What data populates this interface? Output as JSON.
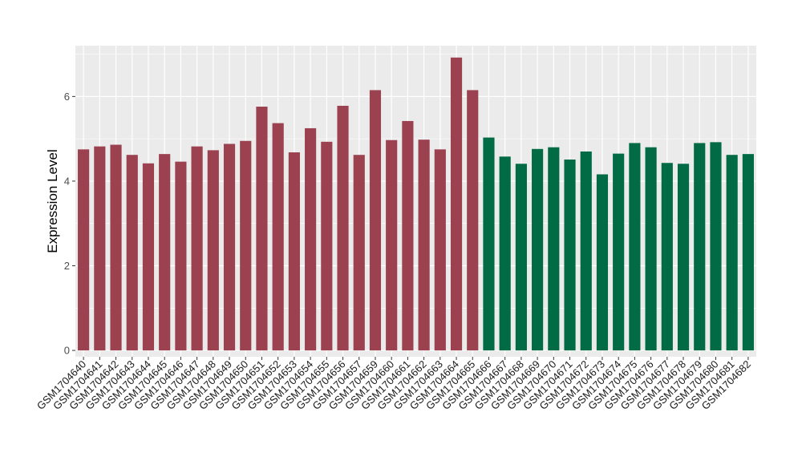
{
  "chart_data": {
    "type": "bar",
    "ylabel": "Expression Level",
    "ylim": [
      -0.15,
      7.2
    ],
    "yticks": [
      0,
      2,
      4,
      6
    ],
    "grid": true,
    "legend": "none",
    "colors": {
      "group_a": "#9b4150",
      "group_b": "#006b45",
      "panel_bg": "#ebebeb",
      "grid": "#ffffff"
    },
    "categories": [
      "GSM1704640",
      "GSM1704641",
      "GSM1704642",
      "GSM1704643",
      "GSM1704644",
      "GSM1704645",
      "GSM1704646",
      "GSM1704647",
      "GSM1704648",
      "GSM1704649",
      "GSM1704650",
      "GSM1704651",
      "GSM1704652",
      "GSM1704653",
      "GSM1704654",
      "GSM1704655",
      "GSM1704656",
      "GSM1704657",
      "GSM1704659",
      "GSM1704660",
      "GSM1704661",
      "GSM1704662",
      "GSM1704663",
      "GSM1704664",
      "GSM1704665",
      "GSM1704666",
      "GSM1704667",
      "GSM1704668",
      "GSM1704669",
      "GSM1704670",
      "GSM1704671",
      "GSM1704672",
      "GSM1704673",
      "GSM1704674",
      "GSM1704675",
      "GSM1704676",
      "GSM1704677",
      "GSM1704678",
      "GSM1704679",
      "GSM1704680",
      "GSM1704681",
      "GSM1704682"
    ],
    "values": [
      4.75,
      4.82,
      4.86,
      4.62,
      4.42,
      4.64,
      4.46,
      4.82,
      4.73,
      4.88,
      4.95,
      5.76,
      5.37,
      4.68,
      5.25,
      4.93,
      5.78,
      4.62,
      6.15,
      4.97,
      5.42,
      4.98,
      4.75,
      6.92,
      6.15,
      5.03,
      4.58,
      4.41,
      4.76,
      4.8,
      4.51,
      4.7,
      4.16,
      4.65,
      4.9,
      4.8,
      4.43,
      4.41,
      4.9,
      4.92,
      4.62,
      4.64
    ],
    "group": [
      "a",
      "a",
      "a",
      "a",
      "a",
      "a",
      "a",
      "a",
      "a",
      "a",
      "a",
      "a",
      "a",
      "a",
      "a",
      "a",
      "a",
      "a",
      "a",
      "a",
      "a",
      "a",
      "a",
      "a",
      "a",
      "b",
      "b",
      "b",
      "b",
      "b",
      "b",
      "b",
      "b",
      "b",
      "b",
      "b",
      "b",
      "b",
      "b",
      "b",
      "b",
      "b"
    ]
  }
}
